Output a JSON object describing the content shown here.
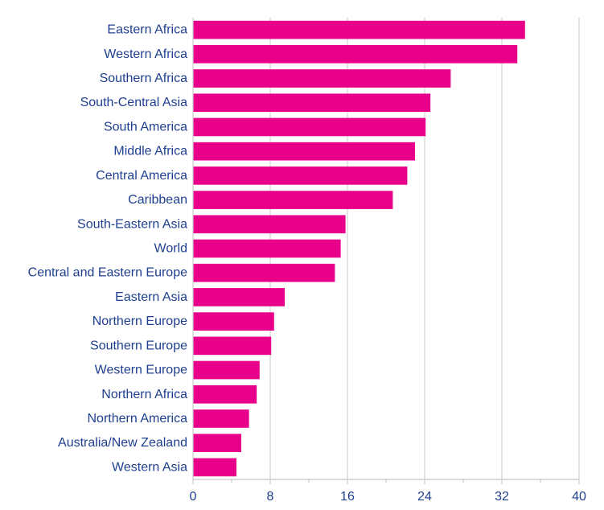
{
  "chart_data": {
    "type": "bar",
    "orientation": "horizontal",
    "categories": [
      "Eastern Africa",
      "Western Africa",
      "Southern Africa",
      "South-Central Asia",
      "South America",
      "Middle Africa",
      "Central America",
      "Caribbean",
      "South-Eastern Asia",
      "World",
      "Central and Eastern Europe",
      "Eastern Asia",
      "Northern Europe",
      "Southern Europe",
      "Western Europe",
      "Northern Africa",
      "Northern America",
      "Australia/New Zealand",
      "Western Asia"
    ],
    "values": [
      34.4,
      33.6,
      26.7,
      24.6,
      24.1,
      23.0,
      22.2,
      20.7,
      15.8,
      15.3,
      14.7,
      9.5,
      8.4,
      8.1,
      6.9,
      6.6,
      5.8,
      5.0,
      4.5
    ],
    "xlim": [
      0,
      40
    ],
    "xticks": [
      "0",
      "8",
      "16",
      "24",
      "32",
      "40"
    ],
    "grid": true,
    "bar_color": "#e8008a",
    "label_color": "#1f3f8f"
  }
}
